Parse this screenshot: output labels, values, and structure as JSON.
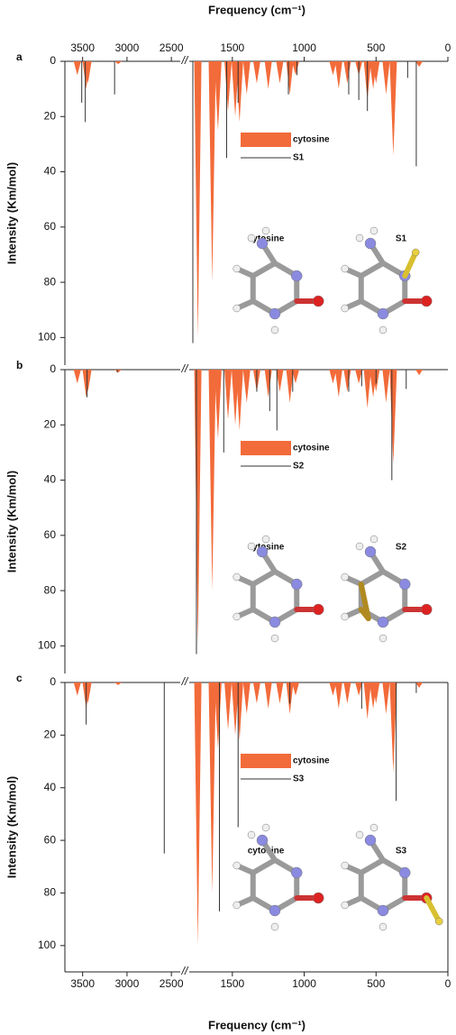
{
  "chart_data": [
    {
      "type": "spectrum",
      "panel_label": "a",
      "xlabel": "Frequency (cm⁻¹)",
      "ylabel": "Intensity (Km/mol)",
      "xlim": [
        [
          3700,
          2400
        ],
        [
          1800,
          0
        ]
      ],
      "xticks": [
        3500,
        3000,
        2500,
        1500,
        1000,
        500,
        0
      ],
      "ylim": [
        0,
        110
      ],
      "yticks": [
        0,
        20,
        40,
        60,
        80,
        100
      ],
      "molecules": [
        "cytosine",
        "S1"
      ],
      "series": [
        {
          "name": "cytosine",
          "color": "#f26b3a",
          "style": "filled",
          "x": [
            3560,
            3460,
            3440,
            3100,
            1740,
            1640,
            1600,
            1530,
            1480,
            1450,
            1400,
            1330,
            1250,
            1170,
            1100,
            1060,
            800,
            760,
            700,
            620,
            560,
            520,
            500,
            430,
            380,
            200
          ],
          "values": [
            5,
            10,
            8,
            1,
            100,
            80,
            25,
            18,
            20,
            22,
            12,
            8,
            10,
            8,
            12,
            5,
            5,
            10,
            8,
            5,
            14,
            10,
            8,
            12,
            34,
            2
          ]
        },
        {
          "name": "S1",
          "color": "#333333",
          "style": "stick",
          "x": [
            3510,
            3470,
            3140,
            1775,
            1540,
            1460,
            1110,
            1050,
            690,
            620,
            560,
            280,
            220
          ],
          "values": [
            15,
            22,
            12,
            102,
            35,
            15,
            12,
            5,
            12,
            14,
            18,
            6,
            38
          ]
        }
      ]
    },
    {
      "type": "spectrum",
      "panel_label": "b",
      "ylabel": "Intensity (Km/mol)",
      "xlim": [
        [
          3700,
          2400
        ],
        [
          1800,
          0
        ]
      ],
      "ylim": [
        0,
        110
      ],
      "yticks": [
        0,
        20,
        40,
        60,
        80,
        100
      ],
      "molecules": [
        "cytosine",
        "S2"
      ],
      "series": [
        {
          "name": "cytosine",
          "color": "#f26b3a",
          "style": "filled",
          "x": [
            3560,
            3460,
            3440,
            3100,
            1740,
            1640,
            1600,
            1530,
            1480,
            1450,
            1400,
            1330,
            1250,
            1170,
            1100,
            1060,
            800,
            760,
            700,
            620,
            560,
            520,
            500,
            430,
            380,
            200
          ],
          "values": [
            5,
            10,
            8,
            1,
            100,
            80,
            25,
            18,
            20,
            22,
            12,
            8,
            10,
            8,
            12,
            5,
            5,
            10,
            8,
            5,
            14,
            10,
            8,
            12,
            34,
            2
          ]
        },
        {
          "name": "S2",
          "color": "#333333",
          "style": "stick",
          "x": [
            3450,
            3110,
            1750,
            1560,
            1330,
            1240,
            1190,
            1080,
            690,
            600,
            500,
            390,
            290
          ],
          "values": [
            10,
            1,
            103,
            30,
            8,
            15,
            22,
            8,
            8,
            6,
            5,
            40,
            7
          ]
        }
      ]
    },
    {
      "type": "spectrum",
      "panel_label": "c",
      "xlabel": "Frequency (cm⁻¹)",
      "ylabel": "Intensity (Km/mol)",
      "xlim": [
        [
          3700,
          2400
        ],
        [
          1800,
          0
        ]
      ],
      "xticks": [
        3500,
        3000,
        2500,
        1500,
        1000,
        500,
        0
      ],
      "ylim": [
        0,
        110
      ],
      "yticks": [
        0,
        20,
        40,
        60,
        80,
        100
      ],
      "molecules": [
        "cytosine",
        "S3"
      ],
      "series": [
        {
          "name": "cytosine",
          "color": "#f26b3a",
          "style": "filled",
          "x": [
            3560,
            3460,
            3440,
            3100,
            1740,
            1640,
            1600,
            1530,
            1480,
            1450,
            1400,
            1330,
            1250,
            1170,
            1100,
            1060,
            800,
            760,
            700,
            620,
            560,
            520,
            500,
            430,
            380,
            200
          ],
          "values": [
            5,
            10,
            8,
            1,
            100,
            80,
            25,
            18,
            20,
            22,
            12,
            8,
            10,
            8,
            12,
            5,
            5,
            10,
            8,
            5,
            14,
            10,
            8,
            12,
            34,
            2
          ]
        },
        {
          "name": "S3",
          "color": "#333333",
          "style": "stick",
          "x": [
            3460,
            2580,
            1590,
            1460,
            1100,
            600,
            360,
            220
          ],
          "values": [
            16,
            65,
            87,
            55,
            8,
            10,
            45,
            4
          ]
        }
      ]
    }
  ]
}
